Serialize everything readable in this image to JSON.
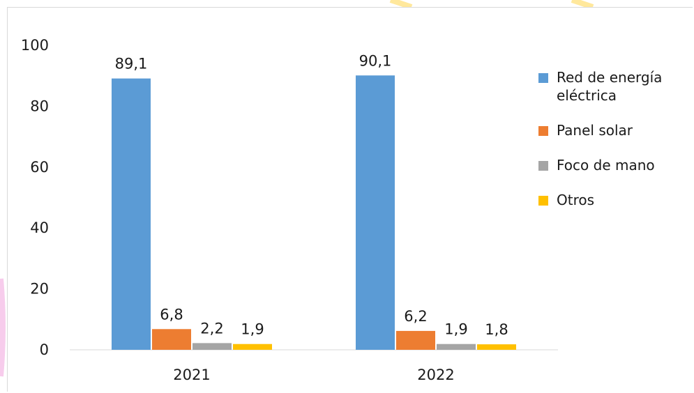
{
  "chart_data": {
    "type": "bar",
    "title": "",
    "xlabel": "",
    "ylabel": "",
    "categories": [
      "2021",
      "2022"
    ],
    "ylim": [
      0,
      100
    ],
    "yticks": [
      0,
      20,
      40,
      60,
      80,
      100
    ],
    "grid": false,
    "legend_position": "right",
    "series": [
      {
        "name": "Red de energía eléctrica",
        "color": "#5b9bd5",
        "values": [
          89.1,
          90.1
        ],
        "labels": [
          "89,1",
          "90,1"
        ]
      },
      {
        "name": "Panel solar",
        "color": "#ed7d31",
        "values": [
          6.8,
          6.2
        ],
        "labels": [
          "6,8",
          "6,2"
        ]
      },
      {
        "name": "Foco de mano",
        "color": "#a5a5a5",
        "values": [
          2.2,
          1.9
        ],
        "labels": [
          "2,2",
          "1,9"
        ]
      },
      {
        "name": "Otros",
        "color": "#ffc000",
        "values": [
          1.9,
          1.8
        ],
        "labels": [
          "1,9",
          "1,8"
        ]
      }
    ]
  }
}
